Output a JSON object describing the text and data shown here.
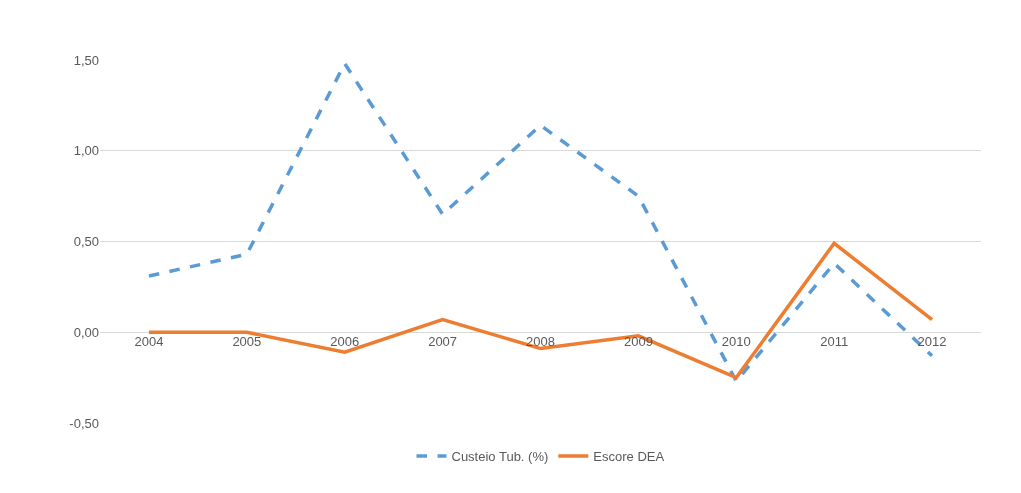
{
  "chart_data": {
    "type": "line",
    "categories": [
      "2004",
      "2005",
      "2006",
      "2007",
      "2008",
      "2009",
      "2010",
      "2011",
      "2012"
    ],
    "series": [
      {
        "name": "Custeio Tub. (%)",
        "color": "#5b9bd5",
        "line_style": "dashed",
        "values": [
          0.31,
          0.43,
          1.48,
          0.65,
          1.14,
          0.75,
          -0.27,
          0.38,
          -0.13
        ]
      },
      {
        "name": "Escore DEA",
        "color": "#ed7d31",
        "line_style": "solid",
        "values": [
          0.0,
          0.0,
          -0.11,
          0.07,
          -0.09,
          -0.02,
          -0.25,
          0.49,
          0.07
        ]
      }
    ],
    "ylim": [
      -0.5,
      1.5
    ],
    "yticks": [
      {
        "value": -0.5,
        "label": "-0,50"
      },
      {
        "value": 0,
        "label": "0,00"
      },
      {
        "value": 0.5,
        "label": "0,50"
      },
      {
        "value": 1,
        "label": "1,00"
      },
      {
        "value": 1.5,
        "label": "1,50"
      }
    ],
    "grid": "y",
    "legend": "bottom",
    "marker": "none"
  }
}
